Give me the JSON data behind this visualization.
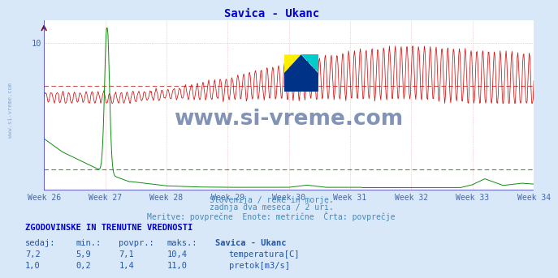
{
  "title": "Savica - Ukanc",
  "subtitle_lines": [
    "Slovenija / reke in morje.",
    "zadnja dva meseca / 2 uri.",
    "Meritve: povprečne  Enote: metrične  Črta: povprečje"
  ],
  "background_color": "#d8e8f8",
  "plot_bg_color": "#ffffff",
  "grid_color": "#e8b8b8",
  "x_label_color": "#4466aa",
  "title_color": "#0000cc",
  "subtitle_color": "#4488bb",
  "week_labels": [
    "Week 26",
    "Week 27",
    "Week 28",
    "Week 29",
    "Week 30",
    "Week 31",
    "Week 32",
    "Week 33",
    "Week 34"
  ],
  "n_points": 744,
  "temp_color": "#cc0000",
  "flow_color": "#008800",
  "temp_avg_line_color": "#cc4444",
  "flow_avg_line_color": "#00aa00",
  "temp_min": 5.9,
  "temp_max": 10.4,
  "temp_avg": 7.1,
  "temp_current": 7.2,
  "flow_min": 0.2,
  "flow_max": 11.0,
  "flow_avg": 1.4,
  "flow_current": 1.0,
  "ylim_min": 0.0,
  "ylim_max": 11.5,
  "y_tick_val": 10,
  "table_title": "ZGODOVINSKE IN TRENUTNE VREDNOSTI",
  "table_headers": [
    "sedaj:",
    "min.:",
    "povpr.:",
    "maks.:",
    "Savica - Ukanc"
  ],
  "table_row1": [
    "7,2",
    "5,9",
    "7,1",
    "10,4",
    "temperatura[C]"
  ],
  "table_row2": [
    "1,0",
    "0,2",
    "1,4",
    "11,0",
    "pretok[m3/s]"
  ],
  "watermark": "www.si-vreme.com",
  "watermark_color": "#1a3a7a",
  "side_text": "www.si-vreme.com"
}
